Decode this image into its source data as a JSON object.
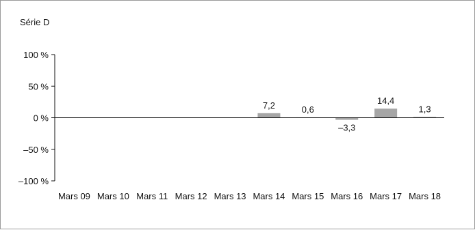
{
  "chart_data": {
    "type": "bar",
    "title": "Série D",
    "categories": [
      "Mars 09",
      "Mars 10",
      "Mars 11",
      "Mars 12",
      "Mars 13",
      "Mars 14",
      "Mars 15",
      "Mars 16",
      "Mars 17",
      "Mars 18"
    ],
    "values": [
      null,
      null,
      null,
      null,
      null,
      7.2,
      0.6,
      -3.3,
      14.4,
      1.3
    ],
    "data_labels": [
      "",
      "",
      "",
      "",
      "",
      "7,2",
      "0,6",
      "–3,3",
      "14,4",
      "1,3"
    ],
    "ylim": [
      -100,
      100
    ],
    "yticks": [
      100,
      50,
      0,
      -50,
      -100
    ],
    "ytick_labels": [
      "100 %",
      "50 %",
      "0 %",
      "–50 %",
      "–100 %"
    ],
    "xlabel": "",
    "ylabel": "",
    "grid": false,
    "bar_color": "#a6a6a6",
    "axis_color": "#111111"
  }
}
